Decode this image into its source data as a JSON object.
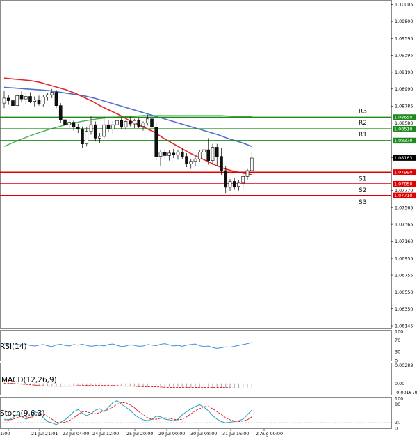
{
  "chart_data": {
    "type": "candlestick",
    "main": {
      "ylim": [
        1.0612,
        1.1005
      ],
      "price_ticks": [
        "1.10005",
        "1.09800",
        "1.09595",
        "1.09395",
        "1.09190",
        "1.08990",
        "1.08785",
        "1.08580",
        "1.08165",
        "1.07770",
        "1.07565",
        "1.07365",
        "1.07160",
        "1.06955",
        "1.06755",
        "1.06550",
        "1.06350",
        "1.06145"
      ],
      "x_ticks": [
        "1:00",
        "21 Jul 21:01",
        "23 Jul 04:00",
        "24 Jul 12:00",
        "25 Jul 20:00",
        "29 Jul 00:00",
        "30 Jul 08:00",
        "31 Jul 16:00",
        "2 Aug 00:00"
      ],
      "candles": [
        {
          "o": 1.0882,
          "h": 1.0897,
          "l": 1.0876,
          "c": 1.0888
        },
        {
          "o": 1.0888,
          "h": 1.0892,
          "l": 1.088,
          "c": 1.0885
        },
        {
          "o": 1.0885,
          "h": 1.089,
          "l": 1.0876,
          "c": 1.0879
        },
        {
          "o": 1.0879,
          "h": 1.0893,
          "l": 1.0877,
          "c": 1.0891
        },
        {
          "o": 1.0891,
          "h": 1.0896,
          "l": 1.0883,
          "c": 1.0887
        },
        {
          "o": 1.0887,
          "h": 1.0894,
          "l": 1.0881,
          "c": 1.089
        },
        {
          "o": 1.089,
          "h": 1.0895,
          "l": 1.0882,
          "c": 1.0884
        },
        {
          "o": 1.0884,
          "h": 1.089,
          "l": 1.0878,
          "c": 1.0886
        },
        {
          "o": 1.0886,
          "h": 1.0891,
          "l": 1.0879,
          "c": 1.0881
        },
        {
          "o": 1.0881,
          "h": 1.0892,
          "l": 1.0878,
          "c": 1.0889
        },
        {
          "o": 1.0889,
          "h": 1.0894,
          "l": 1.0885,
          "c": 1.0892
        },
        {
          "o": 1.0892,
          "h": 1.0899,
          "l": 1.0888,
          "c": 1.0895
        },
        {
          "o": 1.0895,
          "h": 1.0898,
          "l": 1.0876,
          "c": 1.0879
        },
        {
          "o": 1.0879,
          "h": 1.0882,
          "l": 1.0858,
          "c": 1.0862
        },
        {
          "o": 1.0862,
          "h": 1.0866,
          "l": 1.0851,
          "c": 1.0856
        },
        {
          "o": 1.0856,
          "h": 1.0863,
          "l": 1.085,
          "c": 1.0859
        },
        {
          "o": 1.0859,
          "h": 1.0862,
          "l": 1.0849,
          "c": 1.0853
        },
        {
          "o": 1.0853,
          "h": 1.0857,
          "l": 1.0846,
          "c": 1.0851
        },
        {
          "o": 1.0851,
          "h": 1.0854,
          "l": 1.0828,
          "c": 1.0833
        },
        {
          "o": 1.0833,
          "h": 1.0853,
          "l": 1.083,
          "c": 1.0848
        },
        {
          "o": 1.0848,
          "h": 1.0866,
          "l": 1.0844,
          "c": 1.0856
        },
        {
          "o": 1.0856,
          "h": 1.086,
          "l": 1.0836,
          "c": 1.084
        },
        {
          "o": 1.084,
          "h": 1.0846,
          "l": 1.0834,
          "c": 1.0842
        },
        {
          "o": 1.0842,
          "h": 1.0866,
          "l": 1.0839,
          "c": 1.0856
        },
        {
          "o": 1.0856,
          "h": 1.0862,
          "l": 1.0847,
          "c": 1.0851
        },
        {
          "o": 1.0851,
          "h": 1.086,
          "l": 1.0845,
          "c": 1.0856
        },
        {
          "o": 1.0856,
          "h": 1.0866,
          "l": 1.0853,
          "c": 1.0861
        },
        {
          "o": 1.0861,
          "h": 1.0865,
          "l": 1.0851,
          "c": 1.0853
        },
        {
          "o": 1.0853,
          "h": 1.0862,
          "l": 1.085,
          "c": 1.086
        },
        {
          "o": 1.086,
          "h": 1.0866,
          "l": 1.0854,
          "c": 1.0857
        },
        {
          "o": 1.0857,
          "h": 1.0863,
          "l": 1.0852,
          "c": 1.0861
        },
        {
          "o": 1.0861,
          "h": 1.0864,
          "l": 1.0852,
          "c": 1.0854
        },
        {
          "o": 1.0854,
          "h": 1.086,
          "l": 1.0849,
          "c": 1.0858
        },
        {
          "o": 1.0858,
          "h": 1.0868,
          "l": 1.0855,
          "c": 1.0863
        },
        {
          "o": 1.0863,
          "h": 1.0866,
          "l": 1.085,
          "c": 1.0853
        },
        {
          "o": 1.0853,
          "h": 1.0858,
          "l": 1.0813,
          "c": 1.0818
        },
        {
          "o": 1.0818,
          "h": 1.0826,
          "l": 1.0806,
          "c": 1.0823
        },
        {
          "o": 1.0823,
          "h": 1.0827,
          "l": 1.0815,
          "c": 1.0819
        },
        {
          "o": 1.0819,
          "h": 1.0826,
          "l": 1.0813,
          "c": 1.0822
        },
        {
          "o": 1.0822,
          "h": 1.0827,
          "l": 1.0816,
          "c": 1.082
        },
        {
          "o": 1.082,
          "h": 1.0826,
          "l": 1.0814,
          "c": 1.0823
        },
        {
          "o": 1.0823,
          "h": 1.0827,
          "l": 1.0815,
          "c": 1.0818
        },
        {
          "o": 1.0818,
          "h": 1.0822,
          "l": 1.0805,
          "c": 1.0809
        },
        {
          "o": 1.0809,
          "h": 1.0815,
          "l": 1.0803,
          "c": 1.0812
        },
        {
          "o": 1.0812,
          "h": 1.0818,
          "l": 1.0806,
          "c": 1.0815
        },
        {
          "o": 1.0815,
          "h": 1.0826,
          "l": 1.0811,
          "c": 1.0823
        },
        {
          "o": 1.0823,
          "h": 1.0848,
          "l": 1.0818,
          "c": 1.0826
        },
        {
          "o": 1.0826,
          "h": 1.084,
          "l": 1.0808,
          "c": 1.0813
        },
        {
          "o": 1.0813,
          "h": 1.0833,
          "l": 1.0808,
          "c": 1.0829
        },
        {
          "o": 1.0829,
          "h": 1.0833,
          "l": 1.0806,
          "c": 1.0818
        },
        {
          "o": 1.0818,
          "h": 1.0828,
          "l": 1.0795,
          "c": 1.0801
        },
        {
          "o": 1.0801,
          "h": 1.0806,
          "l": 1.0774,
          "c": 1.0781
        },
        {
          "o": 1.0781,
          "h": 1.0791,
          "l": 1.0776,
          "c": 1.0788
        },
        {
          "o": 1.0788,
          "h": 1.0792,
          "l": 1.0778,
          "c": 1.0782
        },
        {
          "o": 1.0782,
          "h": 1.079,
          "l": 1.0777,
          "c": 1.0786
        },
        {
          "o": 1.0786,
          "h": 1.0797,
          "l": 1.078,
          "c": 1.0794
        },
        {
          "o": 1.0794,
          "h": 1.0803,
          "l": 1.079,
          "c": 1.0801
        },
        {
          "o": 1.0801,
          "h": 1.0823,
          "l": 1.0798,
          "c": 1.0816
        }
      ],
      "ma_fast": [
        1.0912,
        1.0911,
        1.091,
        1.0909,
        1.0907,
        1.0904,
        1.0901,
        1.0898,
        1.0894,
        1.0889,
        1.0884,
        1.0878,
        1.0873,
        1.0868,
        1.0862,
        1.0857,
        1.0852,
        1.0847,
        1.084,
        1.0834,
        1.0828,
        1.0822,
        1.0817,
        1.0812,
        1.0807,
        1.0803,
        1.08,
        1.0798,
        1.0796
      ],
      "ma_slow": [
        1.0901,
        1.09,
        1.0899,
        1.0898,
        1.0897,
        1.0895,
        1.0893,
        1.0891,
        1.0888,
        1.0884,
        1.088,
        1.0876,
        1.0872,
        1.0868,
        1.0864,
        1.086,
        1.0856,
        1.0852,
        1.0848,
        1.0844,
        1.0839,
        1.0835,
        1.083
      ],
      "ma_green": [
        1.083,
        1.0838,
        1.0845,
        1.0851,
        1.0856,
        1.086,
        1.0863,
        1.0865,
        1.0866,
        1.0867,
        1.0867,
        1.0867,
        1.0867,
        1.0867,
        1.0867,
        1.0866,
        1.0866
      ],
      "levels": [
        {
          "name": "R3",
          "value": 1.0865,
          "label": "1.08650",
          "color": "#1e8a1e"
        },
        {
          "name": "R2",
          "value": 1.0851,
          "label": "1.08510",
          "color": "#1e8a1e"
        },
        {
          "name": "R1",
          "value": 1.0837,
          "label": "1.08370",
          "color": "#1e8a1e"
        },
        {
          "name": "S1",
          "value": 1.0799,
          "label": "1.07990",
          "color": "#e00000"
        },
        {
          "name": "S2",
          "value": 1.0785,
          "label": "1.07850",
          "color": "#e00000"
        },
        {
          "name": "S3",
          "value": 1.0771,
          "label": "1.07710",
          "color": "#e00000"
        }
      ],
      "current_price": {
        "value": 1.08163,
        "label": "1.08163"
      }
    },
    "rsi": {
      "title": "RSI(14)",
      "ylim": [
        0,
        100
      ],
      "ticks": [
        "100",
        "70",
        "30",
        "0"
      ],
      "values": [
        58,
        55,
        53,
        56,
        54,
        55,
        52,
        50,
        53,
        55,
        51,
        48,
        54,
        56,
        52,
        50,
        55,
        53,
        56,
        52,
        49,
        51,
        53,
        50,
        55,
        57,
        52,
        48,
        50,
        54,
        52,
        49,
        50,
        55,
        53,
        51,
        56,
        58,
        54,
        50,
        52,
        49,
        53,
        55,
        57,
        51,
        48,
        50,
        45,
        42,
        44,
        47,
        46,
        49,
        52,
        55,
        58,
        62
      ]
    },
    "macd": {
      "title": "MACD(12,26,9)",
      "ylim": [
        -0.00167,
        0.00283
      ],
      "ticks": [
        "0.00283",
        "0.00",
        "-0.001679"
      ],
      "hist": [
        0.0001,
        0.0001,
        0.0001,
        0.0,
        -0.0001,
        -0.0002,
        -0.0002,
        -0.0003,
        -0.0003,
        -0.0004,
        -0.0004,
        -0.0004,
        -0.0005,
        -0.0005,
        -0.0005,
        -0.0004,
        -0.0004,
        -0.0004,
        -0.0003,
        -0.0003,
        -0.0003,
        -0.0002,
        -0.0002,
        -0.0002,
        -0.0002,
        -0.0002,
        -0.0003,
        -0.0003,
        -0.0004,
        -0.0004,
        -0.0004,
        -0.0005,
        -0.0005,
        -0.0005,
        -0.0005,
        -0.0006,
        -0.0006,
        -0.0006,
        -0.0005,
        -0.0005,
        -0.0005,
        -0.0006,
        -0.0006,
        -0.0006,
        -0.0006,
        -0.0006,
        -0.0005,
        -0.0005,
        -0.0006,
        -0.0007,
        -0.0007,
        -0.0007,
        -0.0007,
        -0.0007,
        -0.0007,
        -0.0006,
        -0.0006,
        -0.0006
      ],
      "signal": [
        0.0,
        0.0,
        -0.0001,
        -0.0002,
        -0.0003,
        -0.0004,
        -0.0004,
        -0.0004,
        -0.0004,
        -0.0003,
        -0.0003,
        -0.0003,
        -0.0003,
        -0.0003,
        -0.0004,
        -0.0004,
        -0.0005,
        -0.0005,
        -0.0005,
        -0.0006,
        -0.0006,
        -0.0006,
        -0.0006,
        -0.0006,
        -0.0006,
        -0.0006,
        -0.0006,
        -0.0007,
        -0.0007,
        -0.0007
      ]
    },
    "stoch": {
      "title": "Stoch(9,6,3)",
      "ylim": [
        0,
        100
      ],
      "ticks": [
        "100",
        "80",
        "20",
        "0"
      ],
      "k": [
        30,
        28,
        35,
        45,
        40,
        30,
        35,
        55,
        50,
        35,
        22,
        18,
        12,
        20,
        28,
        40,
        55,
        62,
        50,
        42,
        48,
        60,
        65,
        55,
        70,
        85,
        92,
        80,
        70,
        60,
        45,
        35,
        28,
        25,
        30,
        40,
        38,
        30,
        28,
        25,
        30,
        45,
        55,
        65,
        72,
        78,
        70,
        58,
        42,
        30,
        22,
        18,
        20,
        22,
        25,
        30,
        45,
        60
      ],
      "d": [
        25,
        27,
        30,
        35,
        40,
        38,
        35,
        40,
        45,
        48,
        40,
        30,
        20,
        18,
        20,
        25,
        35,
        45,
        55,
        55,
        50,
        48,
        52,
        58,
        62,
        70,
        80,
        85,
        85,
        78,
        68,
        55,
        45,
        35,
        30,
        30,
        33,
        35,
        33,
        30,
        28,
        30,
        38,
        48,
        58,
        65,
        72,
        72,
        65,
        55,
        45,
        35,
        28,
        24,
        22,
        24,
        28,
        38
      ]
    }
  }
}
